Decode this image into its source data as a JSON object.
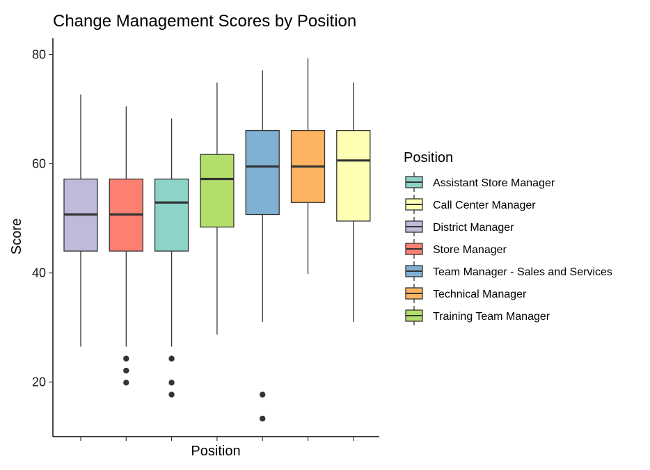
{
  "chart_data": {
    "type": "boxplot",
    "title": "Change Management Scores by Position",
    "xlabel": "Position",
    "ylabel": "Score",
    "ylim": [
      10,
      83
    ],
    "yticks": [
      20,
      40,
      60,
      80
    ],
    "grid": false,
    "legend": {
      "title": "Position",
      "placement": "right",
      "items": [
        {
          "label": "Assistant Store Manager",
          "color": "#8DD3C7"
        },
        {
          "label": "Call Center Manager",
          "color": "#FFFFB3"
        },
        {
          "label": "District Manager",
          "color": "#BEBADA"
        },
        {
          "label": "Store Manager",
          "color": "#FB8072"
        },
        {
          "label": "Team Manager - Sales and Services",
          "color": "#80B1D3"
        },
        {
          "label": "Technical Manager",
          "color": "#FDB462"
        },
        {
          "label": "Training Team Manager",
          "color": "#B3DE69"
        }
      ]
    },
    "series": [
      {
        "category": "District Manager",
        "color": "#BEBADA",
        "whisker_low": 26.5,
        "q1": 44,
        "median": 50.7,
        "q3": 57.2,
        "whisker_high": 72.7,
        "outliers": []
      },
      {
        "category": "Store Manager",
        "color": "#FB8072",
        "whisker_low": 26.5,
        "q1": 44,
        "median": 50.7,
        "q3": 57.2,
        "whisker_high": 70.5,
        "outliers": [
          24.3,
          22.1,
          19.9
        ]
      },
      {
        "category": "Assistant Store Manager",
        "color": "#8DD3C7",
        "whisker_low": 26.5,
        "q1": 44,
        "median": 52.9,
        "q3": 57.2,
        "whisker_high": 68.3,
        "outliers": [
          24.3,
          19.9,
          17.7
        ]
      },
      {
        "category": "Training Team Manager",
        "color": "#B3DE69",
        "whisker_low": 28.7,
        "q1": 48.4,
        "median": 57.2,
        "q3": 61.7,
        "whisker_high": 74.9,
        "outliers": []
      },
      {
        "category": "Team Manager - Sales and Services",
        "color": "#80B1D3",
        "whisker_low": 31,
        "q1": 50.7,
        "median": 59.5,
        "q3": 66.1,
        "whisker_high": 77.1,
        "outliers": [
          17.7,
          13.3
        ]
      },
      {
        "category": "Technical Manager",
        "color": "#FDB462",
        "whisker_low": 39.8,
        "q1": 52.9,
        "median": 59.5,
        "q3": 66.1,
        "whisker_high": 79.3,
        "outliers": []
      },
      {
        "category": "Call Center Manager",
        "color": "#FFFFB3",
        "whisker_low": 31,
        "q1": 49.5,
        "median": 60.6,
        "q3": 66.1,
        "whisker_high": 74.9,
        "outliers": []
      }
    ]
  }
}
